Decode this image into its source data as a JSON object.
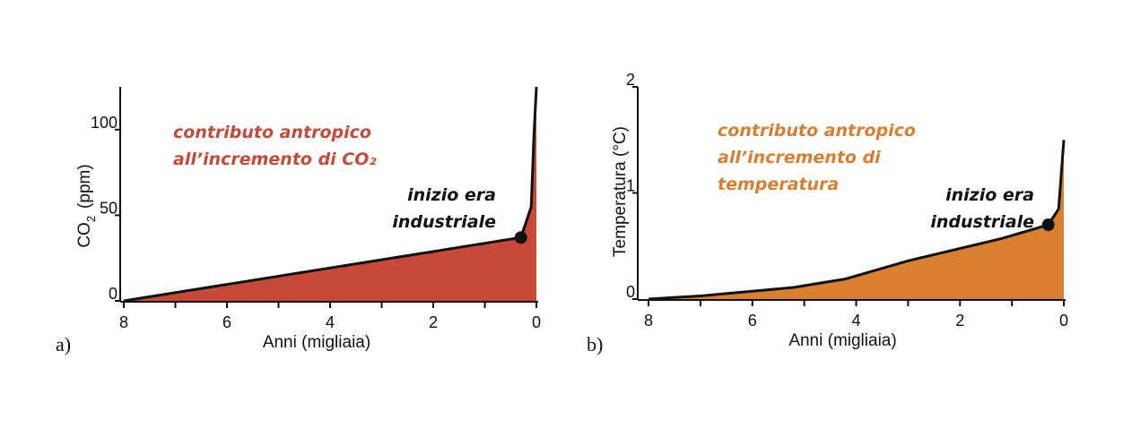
{
  "chart_data": [
    {
      "type": "area",
      "panel_label": "a)",
      "xlabel": "Anni (migliaia)",
      "ylabel_main": "CO",
      "ylabel_sub": "2",
      "ylabel_unit": "(ppm)",
      "x_reversed": true,
      "xlim": [
        8,
        0
      ],
      "ylim": [
        0,
        125
      ],
      "x_ticks": [
        8,
        6,
        4,
        2,
        0
      ],
      "y_ticks": [
        0,
        50,
        100
      ],
      "fill_color": "#c64a37",
      "annotation_color": "#c64a37",
      "annotation": [
        "contributo antropico",
        "all’incremento di CO₂"
      ],
      "marker_label": [
        "inizio era",
        "industriale"
      ],
      "marker": {
        "x": 0.3,
        "y": 37
      },
      "x": [
        8,
        0.3,
        0.1,
        0.05,
        0
      ],
      "y": [
        0,
        37,
        55,
        95,
        125
      ]
    },
    {
      "type": "area",
      "panel_label": "b)",
      "xlabel": "Anni (migliaia)",
      "ylabel": "Temperatura  (°C)",
      "x_reversed": true,
      "xlim": [
        8,
        0
      ],
      "ylim": [
        0,
        2
      ],
      "x_ticks": [
        8,
        6,
        4,
        2,
        0
      ],
      "y_ticks": [
        0,
        1,
        2
      ],
      "fill_color": "#d97f2f",
      "annotation_color": "#d97f2f",
      "annotation": [
        "contributo antropico",
        "all’incremento di",
        "temperatura"
      ],
      "marker_label": [
        "inizio era",
        "industriale"
      ],
      "marker": {
        "x": 0.3,
        "y": 0.7
      },
      "x": [
        8,
        7,
        5.2,
        4.2,
        3,
        1.2,
        0.3,
        0.1,
        0
      ],
      "y": [
        0,
        0.03,
        0.11,
        0.19,
        0.36,
        0.57,
        0.7,
        0.85,
        1.5
      ]
    }
  ]
}
